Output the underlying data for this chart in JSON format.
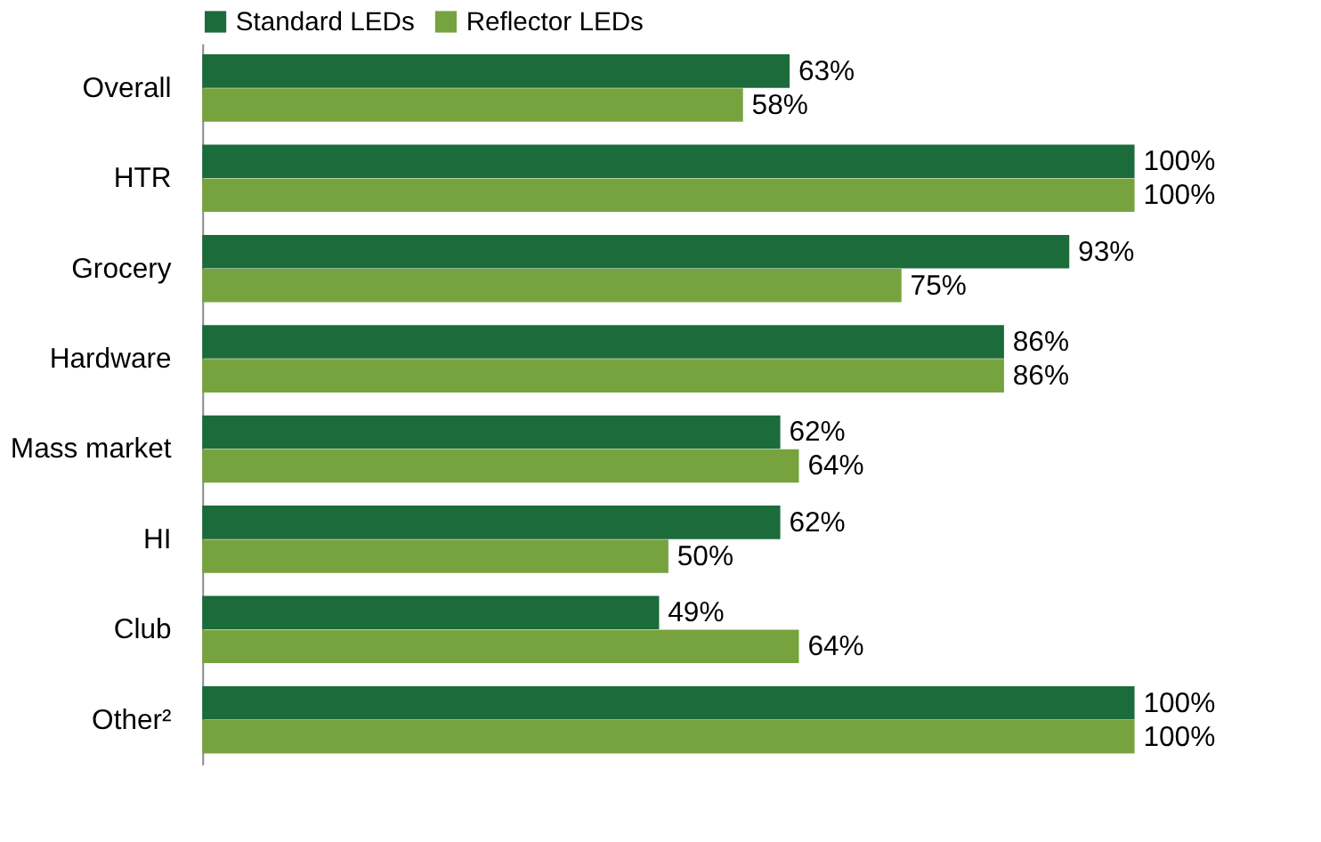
{
  "chart_data": {
    "type": "bar",
    "orientation": "horizontal",
    "legend": "top",
    "categories": [
      "Overall",
      "HTR",
      "Grocery",
      "Hardware",
      "Mass market",
      "HI",
      "Club",
      "Other²"
    ],
    "series": [
      {
        "name": "Standard LEDs",
        "color": "#1b6b3b",
        "values": [
          63,
          100,
          93,
          86,
          62,
          62,
          49,
          100
        ],
        "value_labels": [
          "63%",
          "100%",
          "93%",
          "86%",
          "62%",
          "62%",
          "49%",
          "100%"
        ]
      },
      {
        "name": "Reflector LEDs",
        "color": "#76a33e",
        "values": [
          58,
          100,
          75,
          86,
          64,
          50,
          64,
          100
        ],
        "value_labels": [
          "58%",
          "100%",
          "75%",
          "86%",
          "64%",
          "50%",
          "64%",
          "100%"
        ]
      }
    ]
  }
}
